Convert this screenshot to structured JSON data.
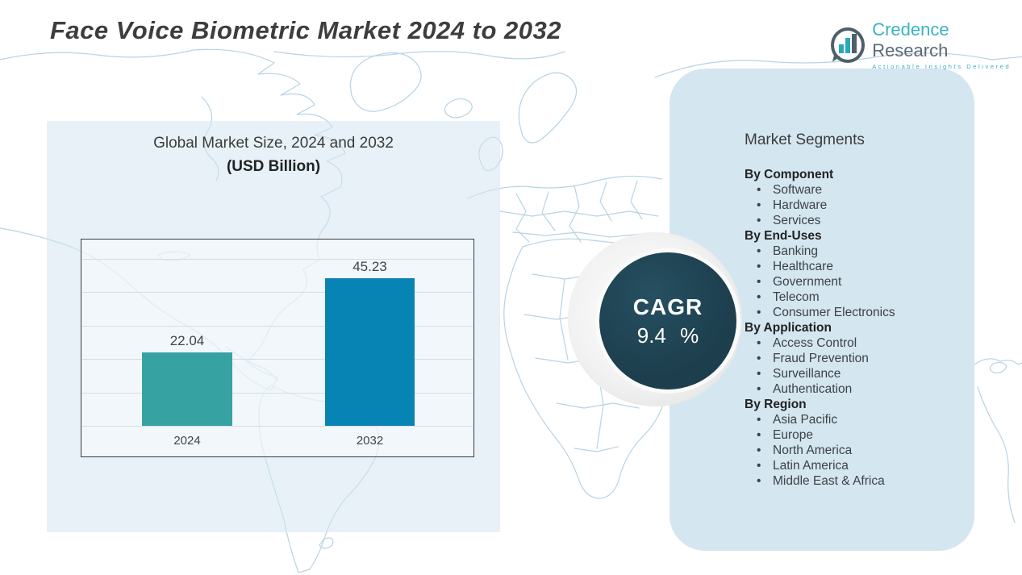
{
  "header": {
    "title": "Face Voice Biometric Market 2024 to 2032"
  },
  "logo": {
    "brand": "Credence",
    "brand2": "Research",
    "tagline": "Actionable Insights Delivered",
    "teal": "#39b3c4",
    "slate": "#5b6a76"
  },
  "chart_data": {
    "type": "bar",
    "title": "Global Market Size, 2024 and 2032",
    "subtitle": "(USD Billion)",
    "categories": [
      "2024",
      "2032"
    ],
    "values": [
      22.04,
      45.23
    ],
    "value_labels": [
      "22.04",
      "45.23"
    ],
    "bar_colors": [
      "#36a2a2",
      "#0884b4"
    ],
    "ylim": [
      0,
      50
    ],
    "gridlines": true,
    "legend": "none",
    "ylabel": "",
    "xlabel": ""
  },
  "cagr": {
    "label": "CAGR",
    "value": "9.4 %",
    "circle_color": "#1d3e4d"
  },
  "segments": {
    "title": "Market Segments",
    "groups": [
      {
        "heading": "By Component",
        "items": [
          "Software",
          "Hardware",
          "Services"
        ]
      },
      {
        "heading": "By End-Uses",
        "items": [
          "Banking",
          "Healthcare",
          "Government",
          "Telecom",
          "Consumer Electronics"
        ]
      },
      {
        "heading": "By Application",
        "items": [
          "Access Control",
          "Fraud Prevention",
          "Surveillance",
          "Authentication"
        ]
      },
      {
        "heading": "By Region",
        "items": [
          "Asia Pacific",
          "Europe",
          "North America",
          "Latin America",
          "Middle East & Africa"
        ]
      }
    ],
    "bullet": "•"
  },
  "colors": {
    "panel_left": "#dde9f3",
    "panel_right": "#d4e6f0",
    "map_line": "#b7d3e4",
    "title_text": "#3d3d3d"
  }
}
